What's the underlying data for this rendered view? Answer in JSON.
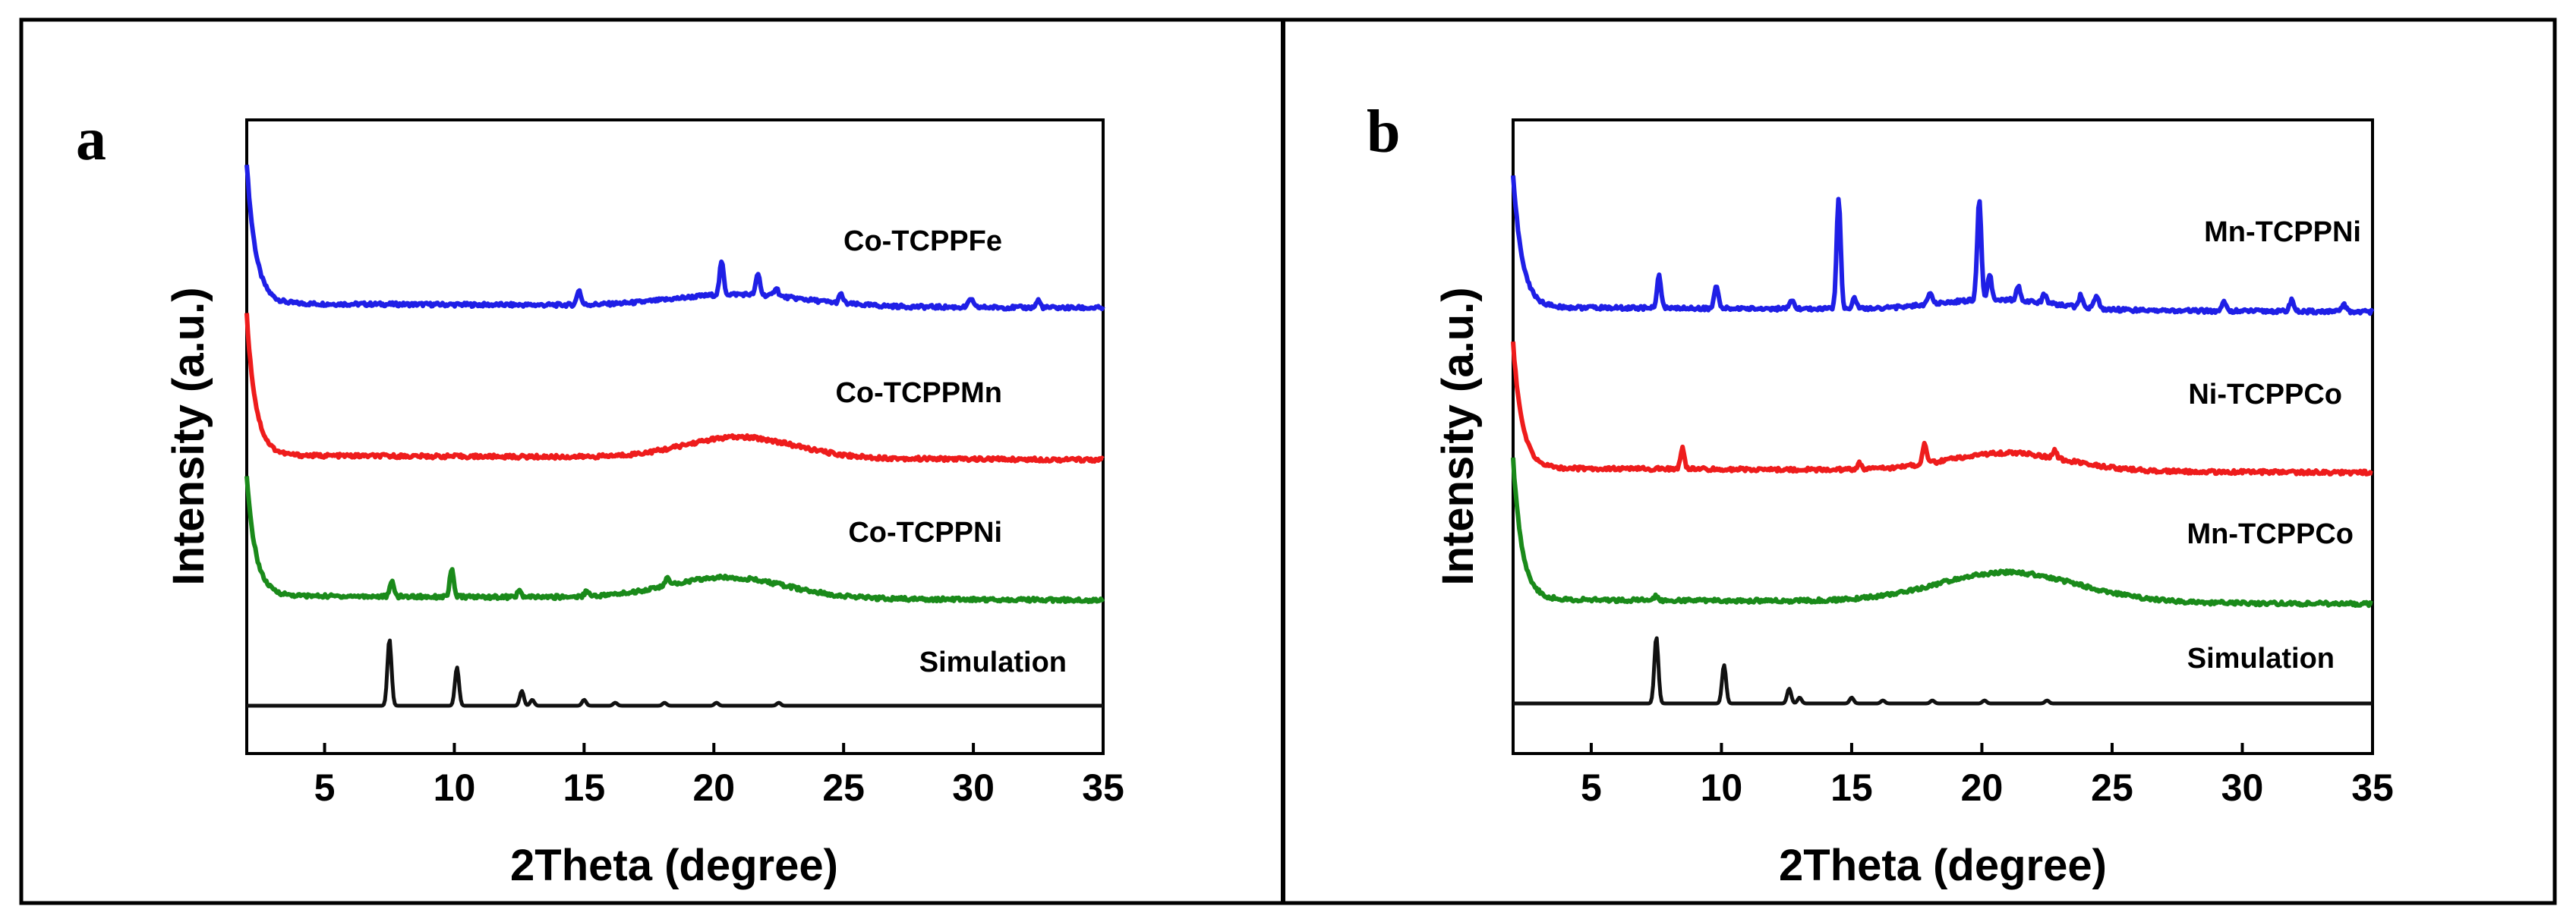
{
  "figure": {
    "panels": [
      "a",
      "b"
    ]
  },
  "chart_data": [
    {
      "panel_label": "a",
      "type": "line",
      "xlabel": "2Theta (degree)",
      "ylabel": "Intensity (a.u.)",
      "xlim": [
        2,
        35
      ],
      "xticks": [
        5,
        10,
        15,
        20,
        25,
        30,
        35
      ],
      "yticks": [],
      "series": [
        {
          "name": "Co-TCPPFe",
          "color": "#1f1fe6",
          "offset": 3.0,
          "peaks": [
            [
              14.8,
              0.1
            ],
            [
              20.3,
              0.22
            ],
            [
              21.7,
              0.14
            ],
            [
              22.4,
              0.06
            ],
            [
              24.9,
              0.06
            ],
            [
              29.9,
              0.06
            ],
            [
              32.5,
              0.05
            ]
          ],
          "humps": [
            [
              21,
              3.5,
              0.08
            ]
          ],
          "start_rise": 0.95
        },
        {
          "name": "Co-TCPPMn",
          "color": "#ee1c1c",
          "offset": 2.0,
          "peaks": [],
          "humps": [
            [
              21,
              3.0,
              0.14
            ]
          ],
          "start_rise": 0.95
        },
        {
          "name": "Co-TCPPNi",
          "color": "#1a8a1a",
          "offset": 1.0,
          "peaks": [
            [
              7.6,
              0.1
            ],
            [
              9.9,
              0.18
            ],
            [
              12.5,
              0.04
            ],
            [
              15.1,
              0.04
            ],
            [
              18.2,
              0.05
            ]
          ],
          "humps": [
            [
              20.5,
              3.2,
              0.14
            ]
          ],
          "start_rise": 0.8
        },
        {
          "name": "Simulation",
          "color": "#111111",
          "offset": 0.0,
          "peaks": [
            [
              7.5,
              0.45
            ],
            [
              10.1,
              0.26
            ],
            [
              12.6,
              0.1
            ],
            [
              13.0,
              0.04
            ],
            [
              15.0,
              0.04
            ],
            [
              16.2,
              0.02
            ],
            [
              18.1,
              0.02
            ],
            [
              20.1,
              0.02
            ],
            [
              22.5,
              0.02
            ]
          ],
          "humps": [],
          "start_rise": 0.0
        }
      ]
    },
    {
      "panel_label": "b",
      "type": "line",
      "xlabel": "2Theta (degree)",
      "ylabel": "Intensity (a.u.)",
      "xlim": [
        2,
        35
      ],
      "xticks": [
        5,
        10,
        15,
        20,
        25,
        30,
        35
      ],
      "yticks": [],
      "series": [
        {
          "name": "Mn-TCPPNi",
          "color": "#1f1fe6",
          "offset": 3.0,
          "peaks": [
            [
              7.6,
              0.22
            ],
            [
              9.8,
              0.15
            ],
            [
              12.7,
              0.05
            ],
            [
              14.5,
              0.75
            ],
            [
              15.1,
              0.07
            ],
            [
              18.0,
              0.08
            ],
            [
              19.9,
              0.68
            ],
            [
              20.3,
              0.16
            ],
            [
              21.4,
              0.1
            ],
            [
              22.4,
              0.06
            ],
            [
              23.8,
              0.08
            ],
            [
              24.4,
              0.09
            ],
            [
              29.3,
              0.06
            ],
            [
              31.9,
              0.08
            ],
            [
              33.9,
              0.05
            ]
          ],
          "humps": [
            [
              20.5,
              3.0,
              0.07
            ]
          ],
          "start_rise": 0.9
        },
        {
          "name": "Ni-TCPPCo",
          "color": "#ee1c1c",
          "offset": 2.0,
          "peaks": [
            [
              8.5,
              0.14
            ],
            [
              15.3,
              0.04
            ],
            [
              17.8,
              0.14
            ],
            [
              22.8,
              0.05
            ]
          ],
          "humps": [
            [
              21,
              3.2,
              0.12
            ]
          ],
          "start_rise": 0.85
        },
        {
          "name": "Mn-TCPPCo",
          "color": "#1a8a1a",
          "offset": 1.0,
          "peaks": [
            [
              7.5,
              0.03
            ]
          ],
          "humps": [
            [
              21,
              3.8,
              0.2
            ]
          ],
          "start_rise": 0.95
        },
        {
          "name": "Simulation",
          "color": "#111111",
          "offset": 0.0,
          "peaks": [
            [
              7.5,
              0.45
            ],
            [
              10.1,
              0.26
            ],
            [
              12.6,
              0.1
            ],
            [
              13.0,
              0.04
            ],
            [
              15.0,
              0.04
            ],
            [
              16.2,
              0.02
            ],
            [
              18.1,
              0.02
            ],
            [
              20.1,
              0.02
            ],
            [
              22.5,
              0.02
            ]
          ],
          "humps": [],
          "start_rise": 0.0
        }
      ]
    }
  ]
}
